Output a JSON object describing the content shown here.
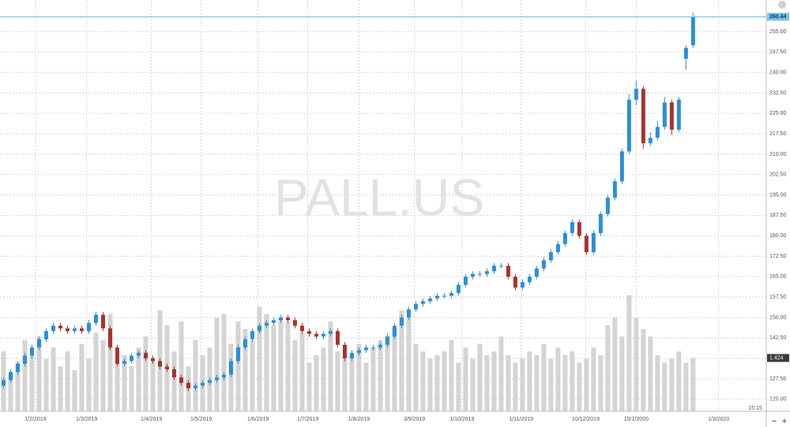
{
  "chart_data": {
    "type": "candlestick",
    "title": "PALL.US",
    "time": "15:15",
    "up_color": "#2b8fd6",
    "down_color": "#a8322d",
    "volume_color": "#d4d4d4",
    "grid": true,
    "xlim": [
      -0.5,
      107.3
    ],
    "ylim": [
      115.6,
      266.6
    ],
    "vlim": [
      0,
      11
    ],
    "last_price": 260.44,
    "xticks": [
      {
        "value": 4.5,
        "label": "1/2/2019"
      },
      {
        "value": 11.7,
        "label": "1/3/2019"
      },
      {
        "value": 20.8,
        "label": "1/4/2019"
      },
      {
        "value": 27.8,
        "label": "1/5/2019"
      },
      {
        "value": 35.8,
        "label": "1/6/2019"
      },
      {
        "value": 42.8,
        "label": "1/7/2019"
      },
      {
        "value": 50,
        "label": "1/8/2019"
      },
      {
        "value": 57.8,
        "label": "3/9/2019"
      },
      {
        "value": 64.5,
        "label": "1/10/2019"
      },
      {
        "value": 72.8,
        "label": "1/11/2019"
      },
      {
        "value": 81.9,
        "label": "10/12/2019"
      },
      {
        "value": 89,
        "label": "10/1/2020"
      },
      {
        "value": 100.6,
        "label": "1/3/2020"
      }
    ],
    "yticks": [
      {
        "value": 120,
        "label": "120.00"
      },
      {
        "value": 127.5,
        "label": "127.50"
      },
      {
        "value": 135,
        "label": "135.00"
      },
      {
        "value": 142.5,
        "label": "142.50"
      },
      {
        "value": 150,
        "label": "150.00"
      },
      {
        "value": 157.5,
        "label": "157.50"
      },
      {
        "value": 165,
        "label": "165.00"
      },
      {
        "value": 172.5,
        "label": "172.50"
      },
      {
        "value": 180,
        "label": "180.00"
      },
      {
        "value": 187.5,
        "label": "187.50"
      },
      {
        "value": 195,
        "label": "195.00"
      },
      {
        "value": 202.5,
        "label": "202.50"
      },
      {
        "value": 210,
        "label": "210.00"
      },
      {
        "value": 217.5,
        "label": "217.50"
      },
      {
        "value": 225,
        "label": "225.00"
      },
      {
        "value": 232.5,
        "label": "232.50"
      },
      {
        "value": 240,
        "label": "240.00"
      },
      {
        "value": 247.5,
        "label": "247.50"
      },
      {
        "value": 255,
        "label": "255.00"
      }
    ],
    "open": [
      125,
      127,
      130,
      133,
      136,
      139,
      142,
      145,
      147,
      146,
      145,
      146,
      145,
      148,
      151,
      146,
      139,
      133,
      134,
      136,
      137,
      135,
      134,
      132,
      131,
      128,
      126,
      124,
      125,
      126,
      127,
      128,
      129,
      134,
      139,
      142,
      145,
      147,
      148,
      149,
      150,
      149,
      147,
      145,
      144,
      143,
      144,
      145,
      140,
      135,
      137,
      138,
      139,
      139,
      140,
      143,
      147,
      150,
      153,
      155,
      156,
      157,
      158,
      158,
      159,
      162,
      165,
      166,
      166,
      167,
      169,
      169,
      165,
      161,
      163,
      165,
      168,
      171,
      174,
      177,
      181,
      185,
      180,
      174,
      181,
      188,
      194,
      200,
      211,
      230,
      234,
      214,
      216,
      220,
      229,
      219,
      245,
      250
    ],
    "high": [
      128,
      131,
      134,
      137,
      140,
      143,
      146,
      148,
      148,
      147,
      147,
      147,
      149,
      152,
      152,
      147,
      140,
      135,
      137,
      138,
      138,
      136,
      135,
      133,
      132,
      129,
      127,
      126,
      127,
      128,
      129,
      130,
      135,
      140,
      143,
      146,
      148,
      149,
      150,
      151,
      151,
      150,
      148,
      146,
      145,
      145,
      146,
      146,
      141,
      138,
      139,
      140,
      140,
      141,
      144,
      148,
      151,
      154,
      156,
      157,
      158,
      159,
      159,
      160,
      163,
      166,
      167,
      167,
      168,
      170,
      170,
      170,
      166,
      164,
      166,
      169,
      172,
      175,
      178,
      182,
      186,
      186,
      181,
      182,
      189,
      195,
      201,
      212,
      232,
      237,
      235,
      218,
      222,
      231,
      230,
      231,
      250,
      262
    ],
    "low": [
      124,
      126,
      129,
      132,
      135,
      138,
      141,
      144,
      145,
      144,
      144,
      144,
      144,
      147,
      145,
      138,
      132,
      132,
      133,
      135,
      134,
      133,
      131,
      130,
      127,
      125,
      123,
      123,
      124,
      125,
      126,
      127,
      128,
      133,
      138,
      141,
      144,
      146,
      147,
      148,
      148,
      146,
      144,
      143,
      142,
      142,
      143,
      139,
      134,
      134,
      136,
      137,
      138,
      138,
      139,
      142,
      146,
      149,
      152,
      154,
      155,
      156,
      157,
      157,
      158,
      161,
      164,
      165,
      165,
      166,
      168,
      164,
      160,
      160,
      162,
      164,
      167,
      170,
      173,
      176,
      180,
      179,
      173,
      173,
      180,
      187,
      193,
      199,
      210,
      228,
      212,
      213,
      215,
      219,
      217,
      218,
      241,
      249
    ],
    "close": [
      127,
      130,
      133,
      136,
      139,
      142,
      145,
      147,
      146,
      145,
      146,
      145,
      148,
      151,
      146,
      139,
      133,
      134,
      136,
      137,
      135,
      134,
      132,
      131,
      128,
      126,
      124,
      125,
      126,
      127,
      128,
      129,
      134,
      139,
      142,
      145,
      147,
      148,
      149,
      150,
      149,
      147,
      145,
      144,
      143,
      144,
      145,
      140,
      135,
      137,
      138,
      139,
      139,
      140,
      143,
      147,
      150,
      153,
      155,
      156,
      157,
      158,
      158,
      159,
      162,
      165,
      166,
      166,
      167,
      169,
      169,
      165,
      161,
      163,
      165,
      168,
      171,
      174,
      177,
      181,
      185,
      180,
      174,
      181,
      188,
      194,
      200,
      211,
      230,
      234,
      214,
      216,
      220,
      229,
      219,
      230,
      249,
      260.44
    ],
    "volume": [
      1.6,
      1.0,
      1.3,
      1.9,
      1.5,
      2.0,
      1.4,
      1.7,
      1.2,
      1.6,
      1.1,
      1.8,
      1.4,
      2.1,
      1.9,
      2.6,
      1.3,
      1.5,
      1.2,
      1.7,
      2.0,
      1.4,
      2.7,
      2.3,
      1.6,
      2.4,
      1.2,
      1.9,
      1.5,
      1.7,
      2.5,
      2.6,
      1.8,
      2.4,
      2.2,
      1.9,
      2.8,
      2.6,
      2.3,
      2.5,
      2.4,
      1.9,
      2.1,
      1.3,
      1.5,
      1.7,
      2.4,
      1.6,
      1.4,
      1.5,
      1.8,
      1.3,
      1.7,
      1.9,
      2.0,
      2.2,
      2.7,
      2.5,
      1.8,
      1.6,
      1.4,
      1.5,
      1.6,
      1.9,
      1.3,
      1.7,
      1.4,
      1.8,
      1.5,
      1.6,
      2.0,
      1.5,
      1.3,
      1.4,
      1.6,
      1.5,
      1.8,
      1.4,
      1.7,
      1.5,
      1.6,
      1.3,
      1.4,
      1.7,
      1.5,
      2.3,
      2.5,
      2.0,
      3.1,
      2.5,
      2.2,
      2.0,
      1.5,
      1.3,
      1.4,
      1.6,
      1.3,
      1.424
    ]
  }
}
